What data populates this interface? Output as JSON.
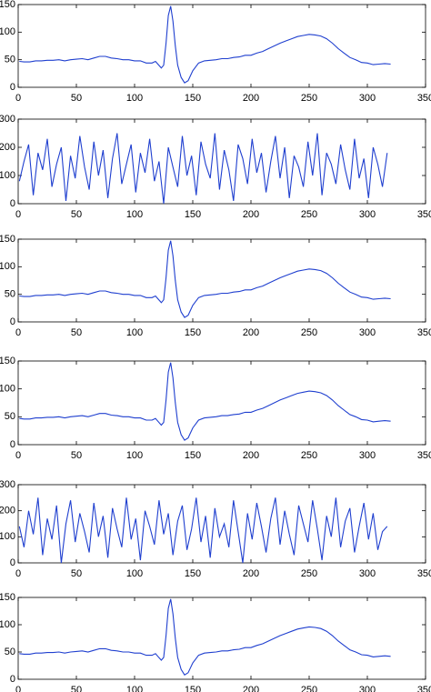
{
  "chart_data": [
    {
      "type": "line",
      "color": "#1f3fcf",
      "xlim": [
        0,
        350
      ],
      "xticks": [
        0,
        50,
        100,
        150,
        200,
        250,
        300,
        350
      ],
      "ylim": [
        0,
        150
      ],
      "yticks": [
        0,
        50,
        100,
        150
      ],
      "x": [
        1,
        5,
        10,
        15,
        20,
        25,
        30,
        35,
        40,
        45,
        50,
        55,
        60,
        65,
        70,
        75,
        80,
        85,
        90,
        95,
        100,
        105,
        110,
        115,
        118,
        120,
        123,
        125,
        127,
        129,
        131,
        133,
        135,
        137,
        140,
        143,
        146,
        150,
        155,
        160,
        165,
        170,
        175,
        180,
        185,
        190,
        195,
        200,
        205,
        210,
        215,
        220,
        225,
        230,
        235,
        240,
        245,
        250,
        255,
        260,
        265,
        270,
        275,
        280,
        285,
        290,
        295,
        300,
        305,
        310,
        315,
        320
      ],
      "values": [
        47,
        46,
        46,
        48,
        48,
        49,
        49,
        50,
        48,
        50,
        51,
        52,
        50,
        53,
        56,
        56,
        53,
        52,
        50,
        50,
        48,
        48,
        44,
        44,
        47,
        42,
        35,
        40,
        80,
        130,
        147,
        120,
        75,
        40,
        18,
        8,
        12,
        30,
        44,
        48,
        49,
        50,
        52,
        52,
        54,
        55,
        58,
        58,
        62,
        65,
        70,
        75,
        80,
        84,
        88,
        92,
        94,
        96,
        95,
        93,
        88,
        80,
        70,
        62,
        54,
        50,
        45,
        44,
        41,
        42,
        43,
        42
      ]
    },
    {
      "type": "line",
      "color": "#1f3fcf",
      "xlim": [
        0,
        350
      ],
      "xticks": [
        0,
        50,
        100,
        150,
        200,
        250,
        300,
        350
      ],
      "ylim": [
        0,
        300
      ],
      "yticks": [
        0,
        100,
        200,
        300
      ],
      "x": [
        1,
        5,
        9,
        13,
        17,
        21,
        25,
        29,
        33,
        37,
        41,
        45,
        49,
        53,
        57,
        61,
        65,
        69,
        73,
        77,
        81,
        85,
        89,
        93,
        97,
        101,
        105,
        109,
        113,
        117,
        121,
        125,
        129,
        133,
        137,
        141,
        145,
        149,
        153,
        157,
        161,
        165,
        169,
        173,
        177,
        181,
        185,
        189,
        193,
        197,
        201,
        205,
        209,
        213,
        217,
        221,
        225,
        229,
        233,
        237,
        241,
        245,
        249,
        253,
        257,
        261,
        265,
        269,
        273,
        277,
        281,
        285,
        289,
        293,
        297,
        301,
        305,
        309,
        313,
        317
      ],
      "values": [
        80,
        150,
        210,
        30,
        180,
        120,
        230,
        60,
        140,
        200,
        10,
        170,
        90,
        240,
        130,
        50,
        220,
        100,
        190,
        20,
        160,
        250,
        70,
        140,
        210,
        40,
        180,
        110,
        230,
        80,
        150,
        0,
        200,
        130,
        60,
        240,
        100,
        170,
        30,
        220,
        140,
        90,
        250,
        50,
        190,
        120,
        10,
        210,
        160,
        70,
        230,
        110,
        180,
        40,
        150,
        240,
        90,
        200,
        20,
        170,
        130,
        60,
        220,
        100,
        250,
        30,
        180,
        140,
        70,
        210,
        120,
        50,
        230,
        90,
        160,
        20,
        200,
        140,
        60,
        180
      ]
    },
    {
      "type": "line",
      "color": "#1f3fcf",
      "xlim": [
        0,
        350
      ],
      "xticks": [
        0,
        50,
        100,
        150,
        200,
        250,
        300,
        350
      ],
      "ylim": [
        0,
        150
      ],
      "yticks": [
        0,
        50,
        100,
        150
      ],
      "x": [
        1,
        5,
        10,
        15,
        20,
        25,
        30,
        35,
        40,
        45,
        50,
        55,
        60,
        65,
        70,
        75,
        80,
        85,
        90,
        95,
        100,
        105,
        110,
        115,
        118,
        120,
        123,
        125,
        127,
        129,
        131,
        133,
        135,
        137,
        140,
        143,
        146,
        150,
        155,
        160,
        165,
        170,
        175,
        180,
        185,
        190,
        195,
        200,
        205,
        210,
        215,
        220,
        225,
        230,
        235,
        240,
        245,
        250,
        255,
        260,
        265,
        270,
        275,
        280,
        285,
        290,
        295,
        300,
        305,
        310,
        315,
        320
      ],
      "values": [
        47,
        46,
        46,
        48,
        48,
        49,
        49,
        50,
        48,
        50,
        51,
        52,
        50,
        53,
        56,
        56,
        53,
        52,
        50,
        50,
        48,
        48,
        44,
        44,
        47,
        42,
        35,
        40,
        80,
        130,
        147,
        120,
        75,
        40,
        18,
        8,
        12,
        30,
        44,
        48,
        49,
        50,
        52,
        52,
        54,
        55,
        58,
        58,
        62,
        65,
        70,
        75,
        80,
        84,
        88,
        92,
        94,
        96,
        95,
        93,
        88,
        80,
        70,
        62,
        54,
        50,
        45,
        44,
        41,
        42,
        43,
        42
      ]
    },
    {
      "type": "line",
      "color": "#1f3fcf",
      "xlim": [
        0,
        350
      ],
      "xticks": [
        0,
        50,
        100,
        150,
        200,
        250,
        300,
        350
      ],
      "ylim": [
        0,
        150
      ],
      "yticks": [
        0,
        50,
        100,
        150
      ],
      "x": [
        1,
        5,
        10,
        15,
        20,
        25,
        30,
        35,
        40,
        45,
        50,
        55,
        60,
        65,
        70,
        75,
        80,
        85,
        90,
        95,
        100,
        105,
        110,
        115,
        118,
        120,
        123,
        125,
        127,
        129,
        131,
        133,
        135,
        137,
        140,
        143,
        146,
        150,
        155,
        160,
        165,
        170,
        175,
        180,
        185,
        190,
        195,
        200,
        205,
        210,
        215,
        220,
        225,
        230,
        235,
        240,
        245,
        250,
        255,
        260,
        265,
        270,
        275,
        280,
        285,
        290,
        295,
        300,
        305,
        310,
        315,
        320
      ],
      "values": [
        47,
        46,
        46,
        48,
        48,
        49,
        49,
        50,
        48,
        50,
        51,
        52,
        50,
        53,
        56,
        56,
        53,
        52,
        50,
        50,
        48,
        48,
        44,
        44,
        47,
        42,
        35,
        40,
        80,
        130,
        147,
        120,
        75,
        40,
        18,
        8,
        12,
        30,
        44,
        48,
        49,
        50,
        52,
        52,
        54,
        55,
        58,
        58,
        62,
        65,
        70,
        75,
        80,
        84,
        88,
        92,
        94,
        96,
        95,
        93,
        88,
        80,
        70,
        62,
        54,
        50,
        45,
        44,
        41,
        42,
        43,
        42
      ]
    },
    {
      "type": "line",
      "color": "#1f3fcf",
      "xlim": [
        0,
        350
      ],
      "xticks": [
        0,
        50,
        100,
        150,
        200,
        250,
        300,
        350
      ],
      "ylim": [
        0,
        300
      ],
      "yticks": [
        0,
        100,
        200,
        300
      ],
      "x": [
        1,
        5,
        9,
        13,
        17,
        21,
        25,
        29,
        33,
        37,
        41,
        45,
        49,
        53,
        57,
        61,
        65,
        69,
        73,
        77,
        81,
        85,
        89,
        93,
        97,
        101,
        105,
        109,
        113,
        117,
        121,
        125,
        129,
        133,
        137,
        141,
        145,
        149,
        153,
        157,
        161,
        165,
        169,
        173,
        177,
        181,
        185,
        189,
        193,
        197,
        201,
        205,
        209,
        213,
        217,
        221,
        225,
        229,
        233,
        237,
        241,
        245,
        249,
        253,
        257,
        261,
        265,
        269,
        273,
        277,
        281,
        285,
        289,
        293,
        297,
        301,
        305,
        309,
        313,
        317
      ],
      "values": [
        140,
        60,
        200,
        110,
        250,
        30,
        170,
        90,
        220,
        0,
        150,
        240,
        80,
        190,
        120,
        40,
        230,
        100,
        180,
        20,
        210,
        130,
        60,
        250,
        90,
        170,
        10,
        200,
        140,
        70,
        240,
        110,
        190,
        30,
        160,
        220,
        50,
        130,
        250,
        80,
        180,
        20,
        210,
        100,
        150,
        60,
        240,
        120,
        0,
        190,
        90,
        230,
        140,
        40,
        170,
        250,
        70,
        200,
        110,
        30,
        220,
        150,
        80,
        240,
        130,
        10,
        180,
        100,
        250,
        60,
        160,
        210,
        40,
        140,
        230,
        90,
        190,
        50,
        120,
        140
      ]
    },
    {
      "type": "line",
      "color": "#1f3fcf",
      "xlim": [
        0,
        350
      ],
      "xticks": [
        0,
        50,
        100,
        150,
        200,
        250,
        300,
        350
      ],
      "ylim": [
        0,
        150
      ],
      "yticks": [
        0,
        50,
        100,
        150
      ],
      "x": [
        1,
        5,
        10,
        15,
        20,
        25,
        30,
        35,
        40,
        45,
        50,
        55,
        60,
        65,
        70,
        75,
        80,
        85,
        90,
        95,
        100,
        105,
        110,
        115,
        118,
        120,
        123,
        125,
        127,
        129,
        131,
        133,
        135,
        137,
        140,
        143,
        146,
        150,
        155,
        160,
        165,
        170,
        175,
        180,
        185,
        190,
        195,
        200,
        205,
        210,
        215,
        220,
        225,
        230,
        235,
        240,
        245,
        250,
        255,
        260,
        265,
        270,
        275,
        280,
        285,
        290,
        295,
        300,
        305,
        310,
        315,
        320
      ],
      "values": [
        47,
        46,
        46,
        48,
        48,
        49,
        49,
        50,
        48,
        50,
        51,
        52,
        50,
        53,
        56,
        56,
        53,
        52,
        50,
        50,
        48,
        48,
        44,
        44,
        47,
        42,
        35,
        40,
        80,
        130,
        147,
        120,
        75,
        40,
        18,
        8,
        12,
        30,
        44,
        48,
        49,
        50,
        52,
        52,
        54,
        55,
        58,
        58,
        62,
        65,
        70,
        75,
        80,
        84,
        88,
        92,
        94,
        96,
        95,
        93,
        88,
        80,
        70,
        62,
        54,
        50,
        45,
        44,
        41,
        42,
        43,
        42
      ]
    }
  ]
}
